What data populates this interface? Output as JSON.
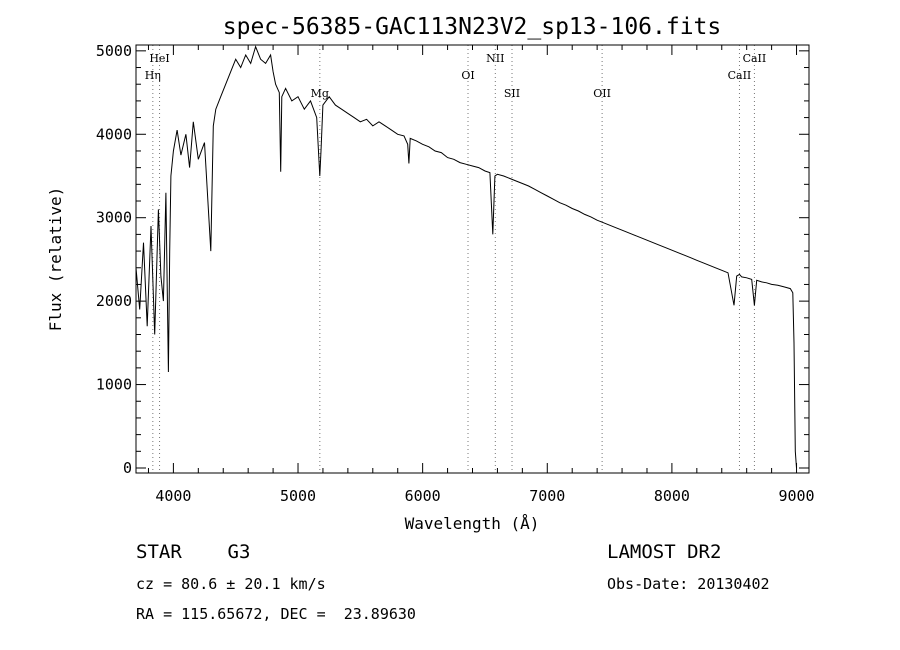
{
  "chart_data": {
    "type": "line",
    "title": "spec-56385-GAC113N23V2_sp13-106.fits",
    "xlabel": "Wavelength (Å)",
    "ylabel": "Flux (relative)",
    "xlim": [
      3700,
      9100
    ],
    "ylim": [
      -60,
      5070
    ],
    "x_ticks": [
      4000,
      5000,
      6000,
      7000,
      8000,
      9000
    ],
    "y_ticks": [
      0,
      1000,
      2000,
      3000,
      4000,
      5000
    ],
    "grid": false,
    "legend": "none",
    "line_color": "#000000",
    "series": [
      {
        "x": [
          3700,
          3730,
          3760,
          3790,
          3820,
          3850,
          3880,
          3900,
          3920,
          3940,
          3960,
          3970,
          3980,
          4000,
          4030,
          4060,
          4100,
          4130,
          4160,
          4200,
          4250,
          4300,
          4320,
          4340,
          4380,
          4420,
          4460,
          4500,
          4540,
          4580,
          4620,
          4660,
          4700,
          4740,
          4780,
          4800,
          4820,
          4850,
          4861,
          4870,
          4900,
          4950,
          5000,
          5050,
          5100,
          5150,
          5175,
          5184,
          5200,
          5250,
          5300,
          5350,
          5400,
          5450,
          5500,
          5550,
          5600,
          5650,
          5700,
          5750,
          5800,
          5850,
          5880,
          5890,
          5900,
          5950,
          6000,
          6050,
          6100,
          6150,
          6200,
          6250,
          6300,
          6350,
          6400,
          6450,
          6500,
          6540,
          6563,
          6580,
          6600,
          6650,
          6700,
          6750,
          6800,
          6850,
          6900,
          6950,
          7000,
          7050,
          7100,
          7150,
          7200,
          7250,
          7300,
          7350,
          7400,
          7450,
          7500,
          7550,
          7600,
          7650,
          7700,
          7750,
          7800,
          7850,
          7900,
          7950,
          8000,
          8050,
          8100,
          8150,
          8200,
          8250,
          8300,
          8350,
          8400,
          8450,
          8498,
          8520,
          8542,
          8560,
          8600,
          8640,
          8662,
          8680,
          8720,
          8760,
          8800,
          8850,
          8900,
          8950,
          8970,
          8980,
          8990,
          9000
        ],
        "y": [
          2400,
          1900,
          2700,
          1700,
          2900,
          1600,
          3100,
          2300,
          2000,
          3300,
          1150,
          2600,
          3500,
          3800,
          4050,
          3750,
          4000,
          3600,
          4150,
          3700,
          3900,
          2600,
          4100,
          4300,
          4450,
          4600,
          4750,
          4900,
          4800,
          4950,
          4850,
          5050,
          4900,
          4850,
          4950,
          4750,
          4600,
          4500,
          3550,
          4450,
          4550,
          4400,
          4450,
          4300,
          4400,
          4200,
          3500,
          3800,
          4350,
          4450,
          4350,
          4300,
          4250,
          4200,
          4150,
          4180,
          4100,
          4150,
          4100,
          4050,
          4000,
          3980,
          3880,
          3650,
          3950,
          3920,
          3880,
          3850,
          3800,
          3780,
          3720,
          3700,
          3660,
          3640,
          3620,
          3600,
          3560,
          3540,
          2800,
          3500,
          3520,
          3500,
          3470,
          3440,
          3410,
          3380,
          3340,
          3300,
          3260,
          3220,
          3180,
          3150,
          3110,
          3080,
          3040,
          3010,
          2970,
          2940,
          2910,
          2880,
          2850,
          2820,
          2790,
          2760,
          2730,
          2700,
          2670,
          2640,
          2610,
          2580,
          2550,
          2520,
          2490,
          2460,
          2430,
          2400,
          2370,
          2340,
          1950,
          2300,
          2320,
          2290,
          2280,
          2260,
          1950,
          2250,
          2230,
          2220,
          2200,
          2190,
          2170,
          2150,
          2100,
          1500,
          200,
          0
        ]
      }
    ],
    "line_annotations": [
      {
        "label": "HeI",
        "x": 3889,
        "label_row": 1
      },
      {
        "label": "Hη",
        "x": 3835,
        "label_row": 2
      },
      {
        "label": "Mg",
        "x": 5175,
        "label_row": 3
      },
      {
        "label": "OI",
        "x": 6364,
        "label_row": 2
      },
      {
        "label": "NII",
        "x": 6583,
        "label_row": 1
      },
      {
        "label": "SII",
        "x": 6717,
        "label_row": 3
      },
      {
        "label": "OII",
        "x": 7440,
        "label_row": 3
      },
      {
        "label": "CaII",
        "x": 8542,
        "label_row": 2
      },
      {
        "label": "CaII",
        "x": 8662,
        "label_row": 1
      }
    ]
  },
  "info": {
    "object": "STAR    G3",
    "survey": "LAMOST DR2",
    "cz": "cz = 80.6 ± 20.1 km/s",
    "obs_date": "Obs-Date: 20130402",
    "coords": "RA = 115.65672, DEC =  23.89630"
  }
}
